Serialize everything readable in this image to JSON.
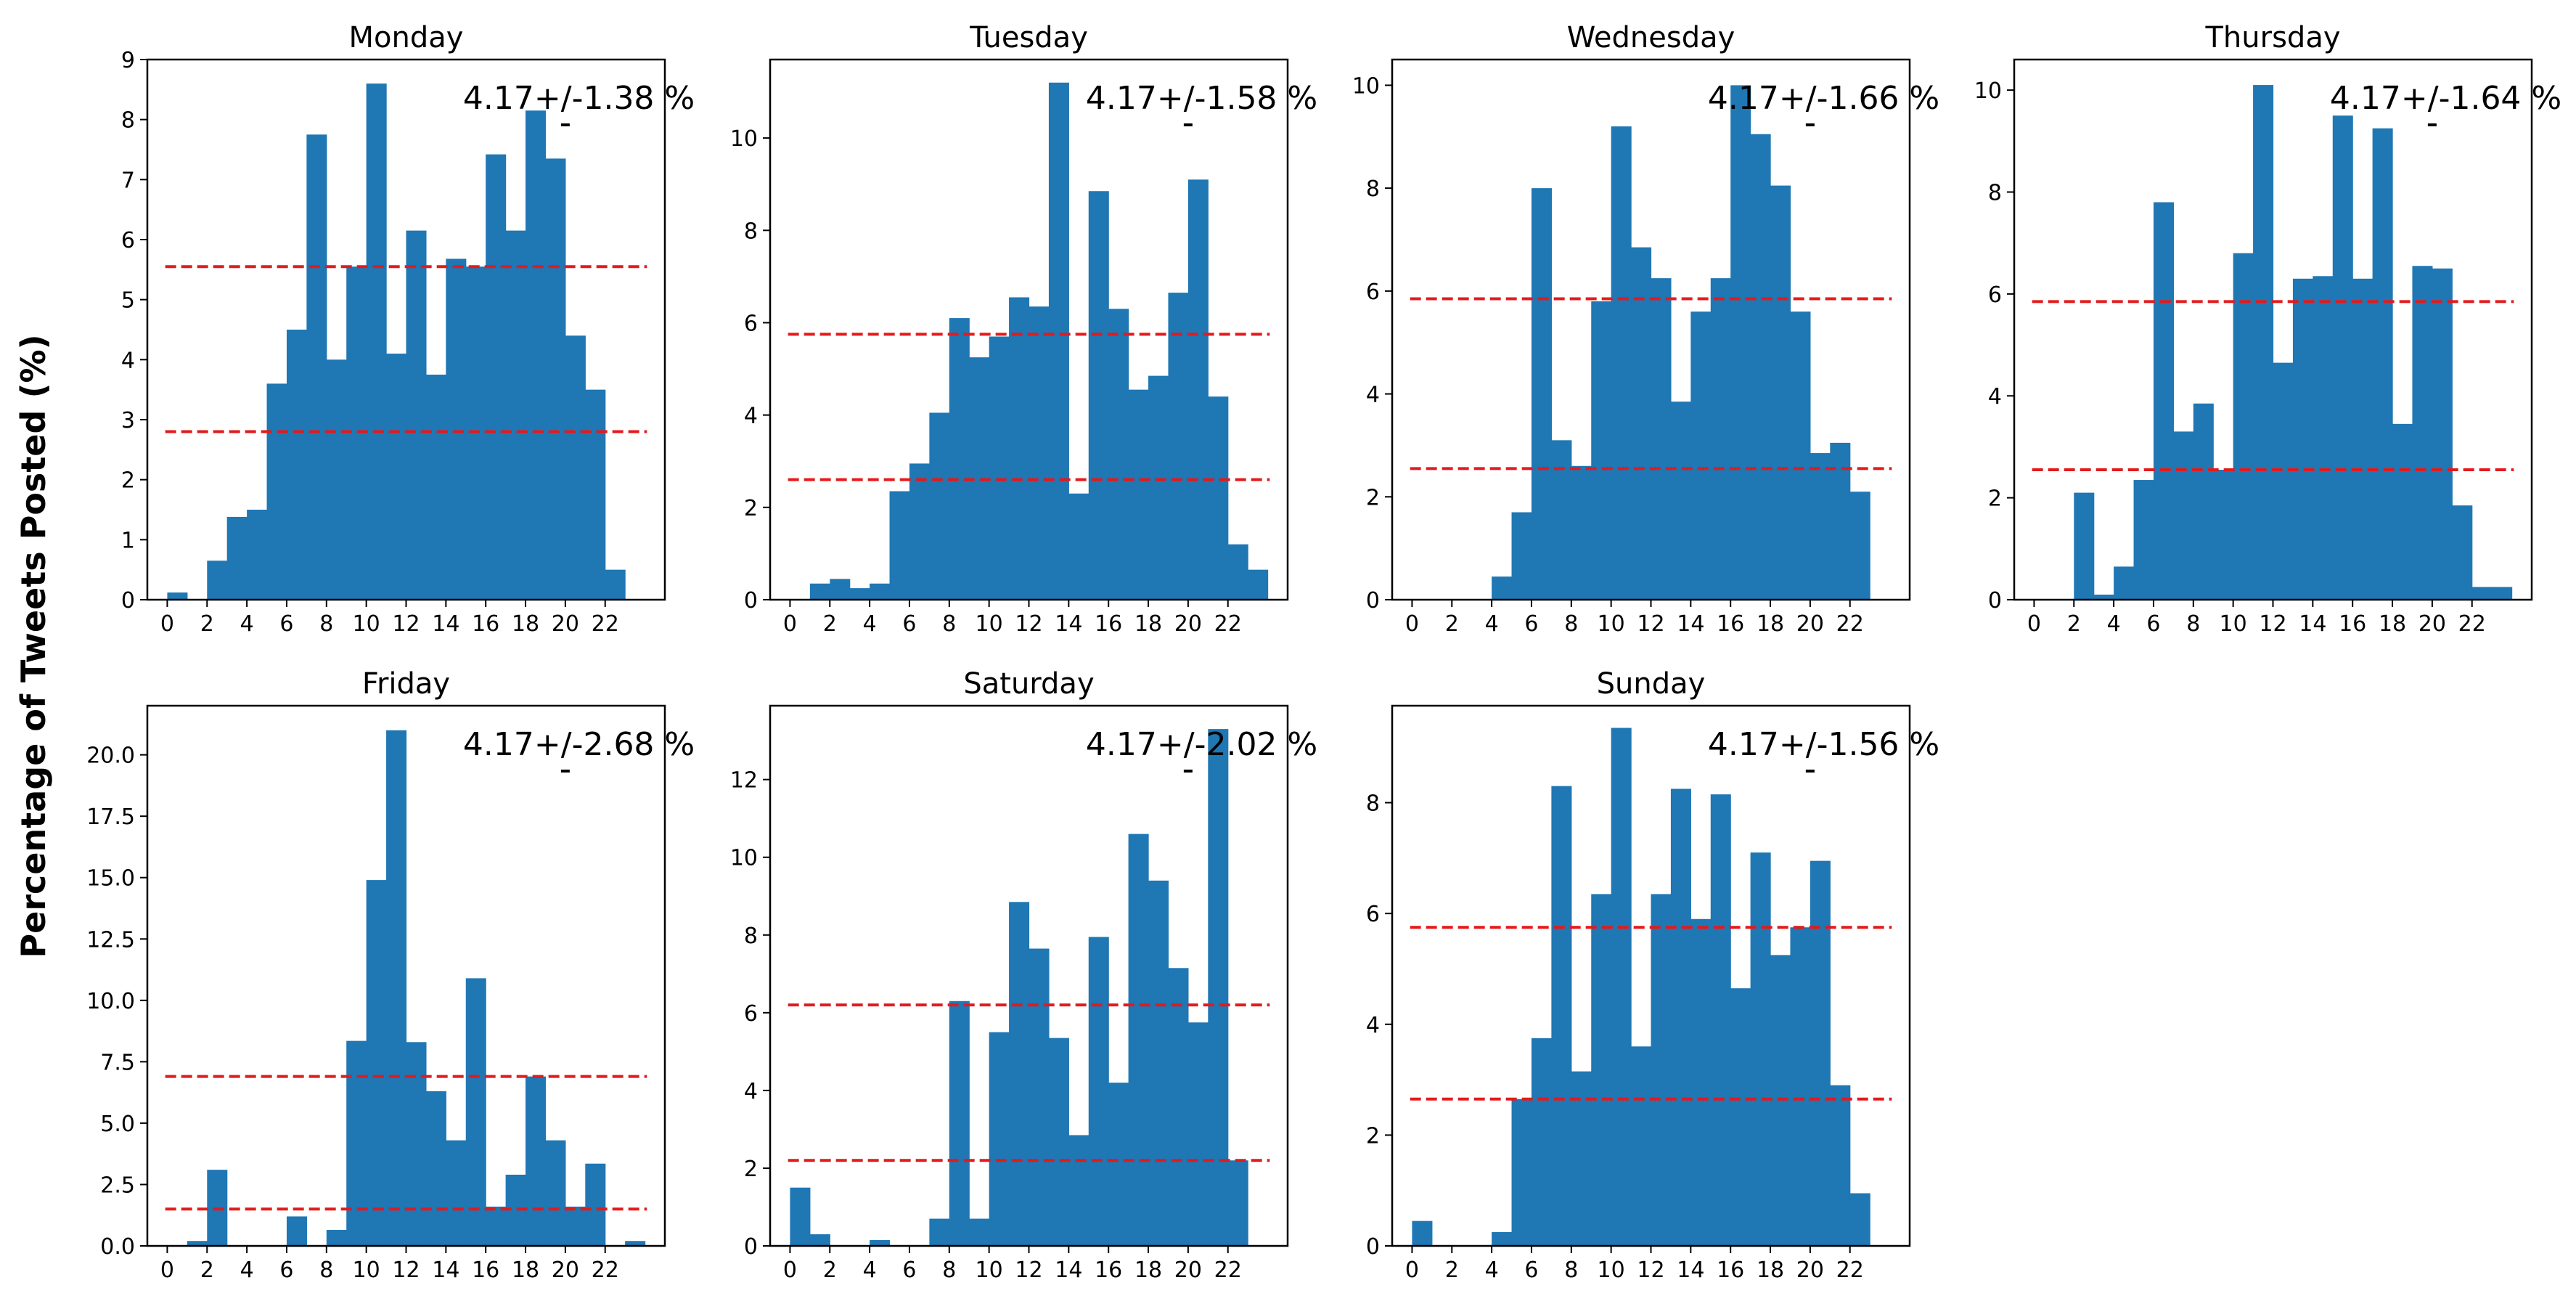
{
  "figure": {
    "ylabel": "Percentage of Tweets Posted (%)"
  },
  "colors": {
    "bar": "#1f77b4",
    "threshold_line": "#e31a1c",
    "axes": "#000000",
    "background": "#ffffff"
  },
  "chart_data": [
    {
      "type": "bar",
      "title": "Monday",
      "annotation": "4.17+/-1.38 %",
      "hours": [
        0,
        1,
        2,
        3,
        4,
        5,
        6,
        7,
        8,
        9,
        10,
        11,
        12,
        13,
        14,
        15,
        16,
        17,
        18,
        19,
        20,
        21,
        22,
        23
      ],
      "values": [
        0.12,
        0,
        0.65,
        1.38,
        1.5,
        3.6,
        4.5,
        7.75,
        4.0,
        5.55,
        8.6,
        4.1,
        6.15,
        3.75,
        5.68,
        5.55,
        7.42,
        6.15,
        8.15,
        7.35,
        4.4,
        3.5,
        0.5,
        0
      ],
      "upper_line": 5.55,
      "lower_line": 2.8,
      "ylim": [
        0,
        9
      ],
      "yticks": [
        0,
        1,
        2,
        3,
        4,
        5,
        6,
        7,
        8,
        9
      ],
      "xticks": [
        0,
        2,
        4,
        6,
        8,
        10,
        12,
        14,
        16,
        18,
        20,
        22
      ],
      "xlim": [
        -1,
        25
      ]
    },
    {
      "type": "bar",
      "title": "Tuesday",
      "annotation": "4.17+/-1.58 %",
      "hours": [
        0,
        1,
        2,
        3,
        4,
        5,
        6,
        7,
        8,
        9,
        10,
        11,
        12,
        13,
        14,
        15,
        16,
        17,
        18,
        19,
        20,
        21,
        22,
        23
      ],
      "values": [
        0,
        0.35,
        0.45,
        0.25,
        0.35,
        2.35,
        2.95,
        4.05,
        6.1,
        5.25,
        5.7,
        6.55,
        6.35,
        11.2,
        2.3,
        8.85,
        6.3,
        4.55,
        4.85,
        6.65,
        9.1,
        4.4,
        1.2,
        0.65
      ],
      "upper_line": 5.75,
      "lower_line": 2.6,
      "ylim": [
        0,
        11.7
      ],
      "yticks": [
        0,
        2,
        4,
        6,
        8,
        10
      ],
      "xticks": [
        0,
        2,
        4,
        6,
        8,
        10,
        12,
        14,
        16,
        18,
        20,
        22
      ],
      "xlim": [
        -1,
        25
      ]
    },
    {
      "type": "bar",
      "title": "Wednesday",
      "annotation": "4.17+/-1.66 %",
      "hours": [
        0,
        1,
        2,
        3,
        4,
        5,
        6,
        7,
        8,
        9,
        10,
        11,
        12,
        13,
        14,
        15,
        16,
        17,
        18,
        19,
        20,
        21,
        22,
        23
      ],
      "values": [
        0,
        0,
        0,
        0,
        0.45,
        1.7,
        8.0,
        3.1,
        2.6,
        5.8,
        9.2,
        6.85,
        6.25,
        3.85,
        5.6,
        6.25,
        10.0,
        9.05,
        8.05,
        5.6,
        2.85,
        3.05,
        2.1,
        0
      ],
      "upper_line": 5.85,
      "lower_line": 2.55,
      "ylim": [
        0,
        10.5
      ],
      "yticks": [
        0,
        2,
        4,
        6,
        8,
        10
      ],
      "xticks": [
        0,
        2,
        4,
        6,
        8,
        10,
        12,
        14,
        16,
        18,
        20,
        22
      ],
      "xlim": [
        -1,
        25
      ]
    },
    {
      "type": "bar",
      "title": "Thursday",
      "annotation": "4.17+/-1.64 %",
      "hours": [
        0,
        1,
        2,
        3,
        4,
        5,
        6,
        7,
        8,
        9,
        10,
        11,
        12,
        13,
        14,
        15,
        16,
        17,
        18,
        19,
        20,
        21,
        22,
        23
      ],
      "values": [
        0,
        0,
        2.1,
        0.1,
        0.65,
        2.35,
        7.8,
        3.3,
        3.85,
        2.55,
        6.8,
        10.1,
        4.65,
        6.3,
        6.35,
        9.5,
        6.3,
        9.25,
        3.45,
        6.55,
        6.5,
        1.85,
        0.25,
        0.25
      ],
      "upper_line": 5.85,
      "lower_line": 2.55,
      "ylim": [
        0,
        10.6
      ],
      "yticks": [
        0,
        2,
        4,
        6,
        8,
        10
      ],
      "xticks": [
        0,
        2,
        4,
        6,
        8,
        10,
        12,
        14,
        16,
        18,
        20,
        22
      ],
      "xlim": [
        -1,
        25
      ]
    },
    {
      "type": "bar",
      "title": "Friday",
      "annotation": "4.17+/-2.68 %",
      "hours": [
        0,
        1,
        2,
        3,
        4,
        5,
        6,
        7,
        8,
        9,
        10,
        11,
        12,
        13,
        14,
        15,
        16,
        17,
        18,
        19,
        20,
        21,
        22,
        23
      ],
      "values": [
        0,
        0.2,
        3.1,
        0,
        0,
        0,
        1.2,
        0,
        0.65,
        8.35,
        14.9,
        21.0,
        8.3,
        6.3,
        4.3,
        10.9,
        1.6,
        2.9,
        6.9,
        4.3,
        1.6,
        3.35,
        0,
        0.2
      ],
      "upper_line": 6.9,
      "lower_line": 1.5,
      "ylim": [
        0,
        22
      ],
      "yticks": [
        0.0,
        2.5,
        5.0,
        7.5,
        10.0,
        12.5,
        15.0,
        17.5,
        20.0
      ],
      "ytick_labels": [
        "0.0",
        "2.5",
        "5.0",
        "7.5",
        "10.0",
        "12.5",
        "15.0",
        "17.5",
        "20.0"
      ],
      "xticks": [
        0,
        2,
        4,
        6,
        8,
        10,
        12,
        14,
        16,
        18,
        20,
        22
      ],
      "xlim": [
        -1,
        25
      ]
    },
    {
      "type": "bar",
      "title": "Saturday",
      "annotation": "4.17+/-2.02 %",
      "hours": [
        0,
        1,
        2,
        3,
        4,
        5,
        6,
        7,
        8,
        9,
        10,
        11,
        12,
        13,
        14,
        15,
        16,
        17,
        18,
        19,
        20,
        21,
        22,
        23
      ],
      "values": [
        1.5,
        0.3,
        0,
        0,
        0.15,
        0,
        0,
        0.7,
        6.3,
        0.7,
        5.5,
        8.85,
        7.65,
        5.35,
        2.85,
        7.95,
        4.2,
        10.6,
        9.4,
        7.15,
        5.75,
        13.3,
        2.2,
        0
      ],
      "upper_line": 6.2,
      "lower_line": 2.2,
      "ylim": [
        0,
        13.9
      ],
      "yticks": [
        0,
        2,
        4,
        6,
        8,
        10,
        12
      ],
      "xticks": [
        0,
        2,
        4,
        6,
        8,
        10,
        12,
        14,
        16,
        18,
        20,
        22
      ],
      "xlim": [
        -1,
        25
      ]
    },
    {
      "type": "bar",
      "title": "Sunday",
      "annotation": "4.17+/-1.56 %",
      "hours": [
        0,
        1,
        2,
        3,
        4,
        5,
        6,
        7,
        8,
        9,
        10,
        11,
        12,
        13,
        14,
        15,
        16,
        17,
        18,
        19,
        20,
        21,
        22,
        23
      ],
      "values": [
        0.45,
        0,
        0,
        0,
        0.25,
        2.65,
        3.75,
        8.3,
        3.15,
        6.35,
        9.35,
        3.6,
        6.35,
        8.25,
        5.9,
        8.15,
        4.65,
        7.1,
        5.25,
        5.75,
        6.95,
        2.9,
        0.95,
        0
      ],
      "upper_line": 5.75,
      "lower_line": 2.65,
      "ylim": [
        0,
        9.75
      ],
      "yticks": [
        0,
        2,
        4,
        6,
        8
      ],
      "xticks": [
        0,
        2,
        4,
        6,
        8,
        10,
        12,
        14,
        16,
        18,
        20,
        22
      ],
      "xlim": [
        -1,
        25
      ]
    }
  ]
}
